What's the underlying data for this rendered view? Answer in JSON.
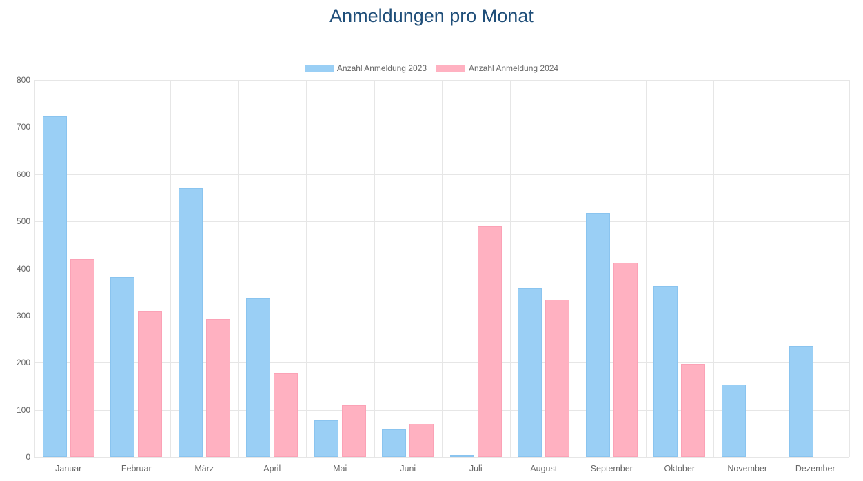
{
  "title": "Anmeldungen pro Monat",
  "legend": {
    "items": [
      {
        "label": "Anzahl Anmeldung 2023",
        "color": "#9ACFF5"
      },
      {
        "label": "Anzahl Anmeldung 2024",
        "color": "#FFB1C1"
      }
    ]
  },
  "chart_data": {
    "type": "bar",
    "title": "Anmeldungen pro Monat",
    "categories": [
      "Januar",
      "Februar",
      "März",
      "April",
      "Mai",
      "Juni",
      "Juli",
      "August",
      "September",
      "Oktober",
      "November",
      "Dezember"
    ],
    "series": [
      {
        "name": "Anzahl Anmeldung 2023",
        "key": "2023",
        "color": "#9ACFF5",
        "border_color": "#8AC4EF",
        "values": [
          723,
          382,
          571,
          336,
          78,
          59,
          5,
          359,
          518,
          362,
          154,
          236
        ]
      },
      {
        "name": "Anzahl Anmeldung 2024",
        "key": "2024",
        "color": "#FFB1C1",
        "border_color": "#FBA2B6",
        "values": [
          420,
          309,
          293,
          177,
          109,
          70,
          490,
          333,
          413,
          198,
          0,
          0
        ]
      }
    ],
    "xlabel": "",
    "ylabel": "",
    "ylim": [
      0,
      800
    ],
    "y_ticks": [
      0,
      100,
      200,
      300,
      400,
      500,
      600,
      700,
      800
    ],
    "grid": true,
    "legend_position": "top"
  },
  "colors": {
    "title": "#1F4E79",
    "axis_text": "#666666",
    "gridline": "#E6E6E6",
    "background": "#FFFFFF"
  }
}
